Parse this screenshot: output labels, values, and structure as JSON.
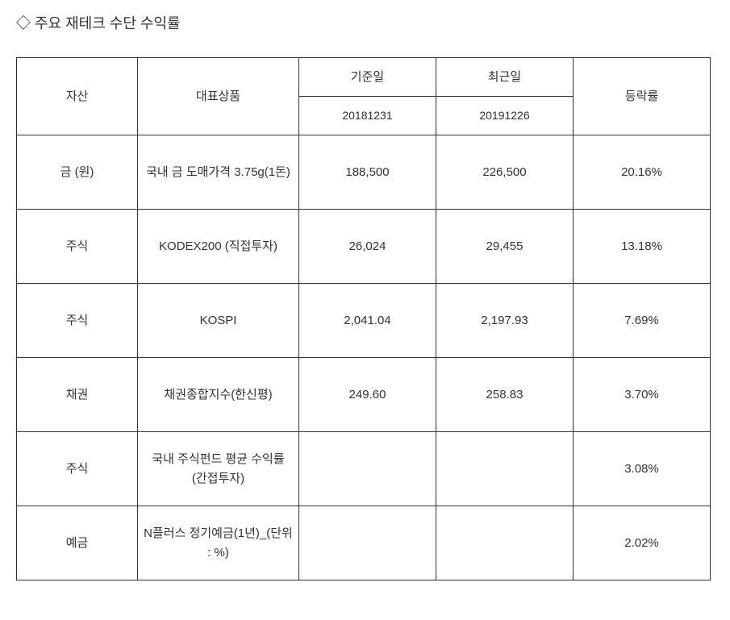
{
  "title": "◇ 주요 재테크 수단 수익률",
  "table": {
    "headers": {
      "asset": "자산",
      "product": "대표상품",
      "base_date_label": "기준일",
      "recent_date_label": "최근일",
      "rate": "등락률",
      "base_date": "20181231",
      "recent_date": "20191226"
    },
    "rows": [
      {
        "asset": "금 (원)",
        "product": "국내 금 도매가격 3.75g(1돈)",
        "base": "188,500",
        "recent": "226,500",
        "rate": "20.16%"
      },
      {
        "asset": "주식",
        "product": "KODEX200 (직접투자)",
        "base": "26,024",
        "recent": "29,455",
        "rate": "13.18%"
      },
      {
        "asset": "주식",
        "product": "KOSPI",
        "base": "2,041.04",
        "recent": "2,197.93",
        "rate": "7.69%"
      },
      {
        "asset": "채권",
        "product": "채권종합지수(한신평)",
        "base": "249.60",
        "recent": "258.83",
        "rate": "3.70%"
      },
      {
        "asset": "주식",
        "product": "국내 주식펀드 평균 수익률 (간접투자)",
        "base": "",
        "recent": "",
        "rate": "3.08%"
      },
      {
        "asset": "예금",
        "product": "N플러스 정기예금(1년)_(단위 : %)",
        "base": "",
        "recent": "",
        "rate": "2.02%"
      }
    ]
  },
  "colors": {
    "text": "#333333",
    "border": "#333333",
    "background": "#ffffff"
  }
}
